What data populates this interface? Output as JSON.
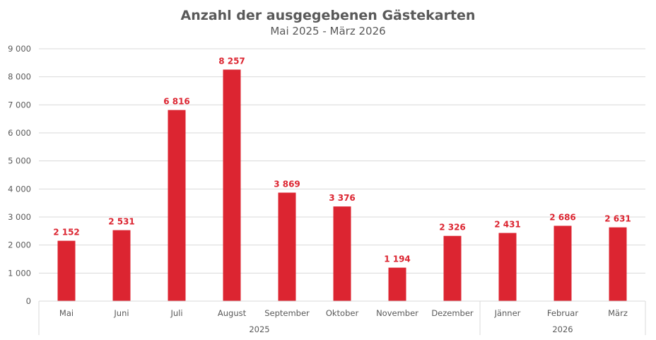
{
  "chart_data": {
    "type": "bar",
    "title": "Anzahl der ausgegebenen Gästekarten",
    "subtitle": "Mai 2025 - März 2026",
    "categories": [
      "Mai",
      "Juni",
      "Juli",
      "August",
      "September",
      "Oktober",
      "November",
      "Dezember",
      "Jänner",
      "Februar",
      "März"
    ],
    "values": [
      2152,
      2531,
      6816,
      8257,
      3869,
      3376,
      1194,
      2326,
      2431,
      2686,
      2631
    ],
    "data_labels": [
      "2 152",
      "2 531",
      "6 816",
      "8 257",
      "3 869",
      "3 376",
      "1 194",
      "2 326",
      "2 431",
      "2 686",
      "2 631"
    ],
    "groups": [
      {
        "label": "2025",
        "categories": [
          "Mai",
          "Juni",
          "Juli",
          "August",
          "September",
          "Oktober",
          "November",
          "Dezember"
        ]
      },
      {
        "label": "2026",
        "categories": [
          "Jänner",
          "Februar",
          "März"
        ]
      }
    ],
    "yticks": [
      "0",
      "1 000",
      "2 000",
      "3 000",
      "4 000",
      "5 000",
      "6 000",
      "7 000",
      "8 000",
      "9 000"
    ],
    "ylim": [
      0,
      9000
    ],
    "grid": true,
    "legend": "none",
    "colors": {
      "bar": "#dc2531",
      "label": "#dc2531"
    }
  }
}
